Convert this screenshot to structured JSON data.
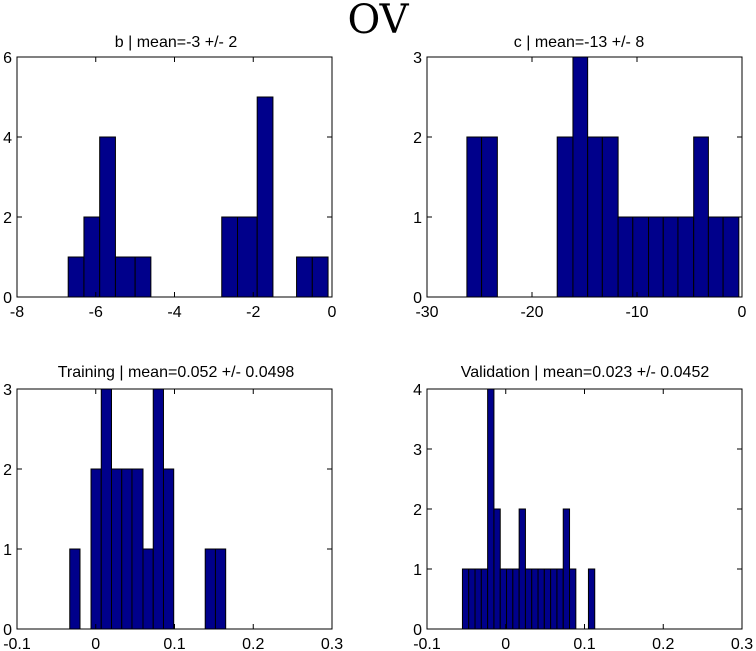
{
  "figure_title": "OV",
  "chart_data": [
    {
      "type": "bar",
      "title": "b | mean=-3 +/- 2",
      "xlim": [
        -8,
        0
      ],
      "ylim": [
        0,
        6
      ],
      "xticks": [
        -8,
        -6,
        -4,
        -2,
        0
      ],
      "yticks": [
        0,
        2,
        4,
        6
      ],
      "xticklabels": [
        "-8",
        "-6",
        "-4",
        "-2",
        "0"
      ],
      "yticklabels": [
        "0",
        "2",
        "4",
        "6"
      ],
      "bars": [
        {
          "x0": -6.7,
          "x1": -6.3,
          "value": 1
        },
        {
          "x0": -6.3,
          "x1": -5.9,
          "value": 2
        },
        {
          "x0": -5.9,
          "x1": -5.5,
          "value": 4
        },
        {
          "x0": -5.5,
          "x1": -5.0,
          "value": 1
        },
        {
          "x0": -5.0,
          "x1": -4.6,
          "value": 1
        },
        {
          "x0": -2.8,
          "x1": -2.4,
          "value": 2
        },
        {
          "x0": -2.4,
          "x1": -1.9,
          "value": 2
        },
        {
          "x0": -1.9,
          "x1": -1.5,
          "value": 5
        },
        {
          "x0": -0.9,
          "x1": -0.5,
          "value": 1
        },
        {
          "x0": -0.5,
          "x1": -0.1,
          "value": 1
        }
      ]
    },
    {
      "type": "bar",
      "title": "c | mean=-13 +/- 8",
      "xlim": [
        -30,
        0
      ],
      "ylim": [
        0,
        3
      ],
      "xticks": [
        -30,
        -20,
        -10,
        0
      ],
      "yticks": [
        0,
        1,
        2,
        3
      ],
      "xticklabels": [
        "-30",
        "-20",
        "-10",
        "0"
      ],
      "yticklabels": [
        "0",
        "1",
        "2",
        "3"
      ],
      "bars": [
        {
          "x0": -26.2,
          "x1": -24.8,
          "value": 2
        },
        {
          "x0": -24.8,
          "x1": -23.3,
          "value": 2
        },
        {
          "x0": -17.6,
          "x1": -16.1,
          "value": 2
        },
        {
          "x0": -16.1,
          "x1": -14.7,
          "value": 3
        },
        {
          "x0": -14.7,
          "x1": -13.3,
          "value": 2
        },
        {
          "x0": -13.3,
          "x1": -11.8,
          "value": 2
        },
        {
          "x0": -11.8,
          "x1": -10.4,
          "value": 1
        },
        {
          "x0": -10.4,
          "x1": -8.9,
          "value": 1
        },
        {
          "x0": -8.9,
          "x1": -7.5,
          "value": 1
        },
        {
          "x0": -7.5,
          "x1": -6.1,
          "value": 1
        },
        {
          "x0": -6.1,
          "x1": -4.6,
          "value": 1
        },
        {
          "x0": -4.6,
          "x1": -3.2,
          "value": 2
        },
        {
          "x0": -3.2,
          "x1": -1.8,
          "value": 1
        },
        {
          "x0": -1.8,
          "x1": -0.3,
          "value": 1
        }
      ]
    },
    {
      "type": "bar",
      "title": "Training | mean=0.052 +/- 0.0498",
      "xlim": [
        -0.1,
        0.3
      ],
      "ylim": [
        0,
        3
      ],
      "xticks": [
        -0.1,
        0,
        0.1,
        0.2,
        0.3
      ],
      "yticks": [
        0,
        1,
        2,
        3
      ],
      "xticklabels": [
        "-0.1",
        "0",
        "0.1",
        "0.2",
        "0.3"
      ],
      "yticklabels": [
        "0",
        "1",
        "2",
        "3"
      ],
      "bars": [
        {
          "x0": -0.033,
          "x1": -0.02,
          "value": 1
        },
        {
          "x0": -0.006,
          "x1": 0.007,
          "value": 2
        },
        {
          "x0": 0.007,
          "x1": 0.02,
          "value": 3
        },
        {
          "x0": 0.02,
          "x1": 0.033,
          "value": 2
        },
        {
          "x0": 0.033,
          "x1": 0.046,
          "value": 2
        },
        {
          "x0": 0.046,
          "x1": 0.06,
          "value": 2
        },
        {
          "x0": 0.06,
          "x1": 0.073,
          "value": 1
        },
        {
          "x0": 0.073,
          "x1": 0.086,
          "value": 3
        },
        {
          "x0": 0.086,
          "x1": 0.099,
          "value": 2
        },
        {
          "x0": 0.139,
          "x1": 0.152,
          "value": 1
        },
        {
          "x0": 0.152,
          "x1": 0.165,
          "value": 1
        }
      ]
    },
    {
      "type": "bar",
      "title": "Validation | mean=0.023 +/- 0.0452",
      "xlim": [
        -0.1,
        0.3
      ],
      "ylim": [
        0,
        4
      ],
      "xticks": [
        -0.1,
        0,
        0.1,
        0.2,
        0.3
      ],
      "yticks": [
        0,
        1,
        2,
        3,
        4
      ],
      "xticklabels": [
        "-0.1",
        "0",
        "0.1",
        "0.2",
        "0.3"
      ],
      "yticklabels": [
        "0",
        "1",
        "2",
        "3",
        "4"
      ],
      "bars": [
        {
          "x0": -0.055,
          "x1": -0.047,
          "value": 1
        },
        {
          "x0": -0.047,
          "x1": -0.039,
          "value": 1
        },
        {
          "x0": -0.039,
          "x1": -0.031,
          "value": 1
        },
        {
          "x0": -0.031,
          "x1": -0.023,
          "value": 1
        },
        {
          "x0": -0.023,
          "x1": -0.015,
          "value": 4
        },
        {
          "x0": -0.015,
          "x1": -0.007,
          "value": 2
        },
        {
          "x0": -0.007,
          "x1": 0.001,
          "value": 1
        },
        {
          "x0": 0.001,
          "x1": 0.009,
          "value": 1
        },
        {
          "x0": 0.009,
          "x1": 0.017,
          "value": 1
        },
        {
          "x0": 0.017,
          "x1": 0.025,
          "value": 2
        },
        {
          "x0": 0.025,
          "x1": 0.033,
          "value": 1
        },
        {
          "x0": 0.033,
          "x1": 0.041,
          "value": 1
        },
        {
          "x0": 0.041,
          "x1": 0.049,
          "value": 1
        },
        {
          "x0": 0.049,
          "x1": 0.057,
          "value": 1
        },
        {
          "x0": 0.057,
          "x1": 0.065,
          "value": 1
        },
        {
          "x0": 0.065,
          "x1": 0.073,
          "value": 1
        },
        {
          "x0": 0.073,
          "x1": 0.081,
          "value": 2
        },
        {
          "x0": 0.081,
          "x1": 0.089,
          "value": 1
        },
        {
          "x0": 0.089,
          "x1": 0.097,
          "value": 0
        },
        {
          "x0": 0.105,
          "x1": 0.113,
          "value": 1
        }
      ]
    }
  ]
}
